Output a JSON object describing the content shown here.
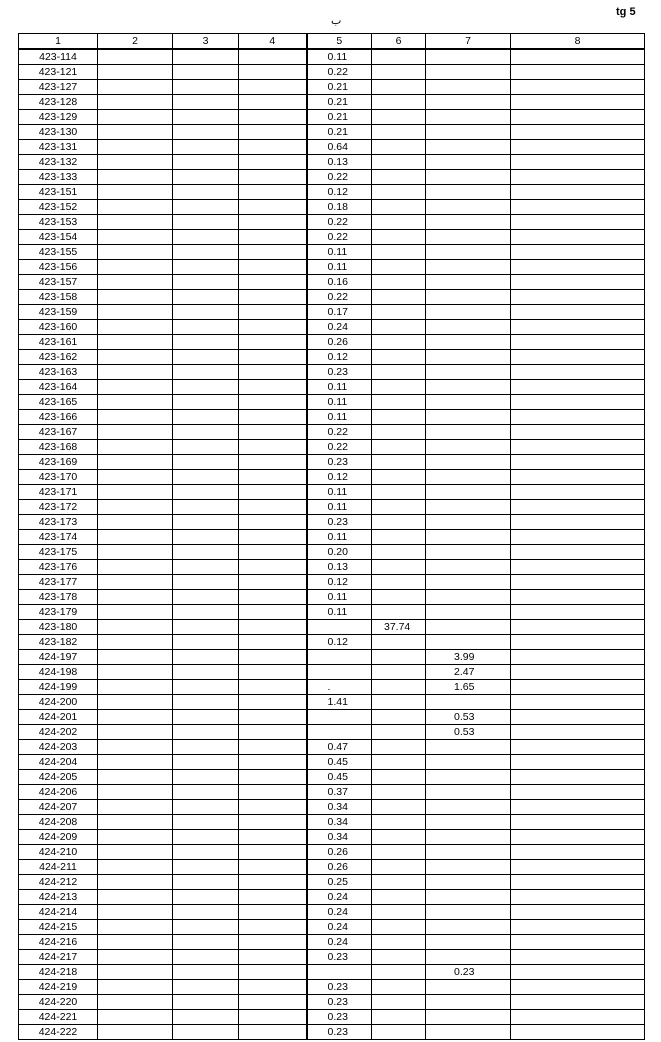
{
  "page_number": "tg 5",
  "top_mark": "ب",
  "headers": [
    "1",
    "2",
    "3",
    "4",
    "5",
    "6",
    "7",
    "8"
  ],
  "rows": [
    {
      "id": "423-114",
      "c5": "0.11"
    },
    {
      "id": "423-121",
      "c5": "0.22"
    },
    {
      "id": "423-127",
      "c5": "0.21"
    },
    {
      "id": "423-128",
      "c5": "0.21"
    },
    {
      "id": "423-129",
      "c5": "0.21"
    },
    {
      "id": "423-130",
      "c5": "0.21"
    },
    {
      "id": "423-131",
      "c5": "0.64"
    },
    {
      "id": "423-132",
      "c5": "0.13"
    },
    {
      "id": "423-133",
      "c5": "0.22"
    },
    {
      "id": "423-151",
      "c5": "0.12"
    },
    {
      "id": "423-152",
      "c5": "0.18"
    },
    {
      "id": "423-153",
      "c5": "0.22"
    },
    {
      "id": "423-154",
      "c5": "0.22"
    },
    {
      "id": "423-155",
      "c5": "0.11"
    },
    {
      "id": "423-156",
      "c5": "0.11"
    },
    {
      "id": "423-157",
      "c5": "0.16"
    },
    {
      "id": "423-158",
      "c5": "0.22"
    },
    {
      "id": "423-159",
      "c5": "0.17"
    },
    {
      "id": "423-160",
      "c5": "0.24"
    },
    {
      "id": "423-161",
      "c5": "0.26"
    },
    {
      "id": "423-162",
      "c5": "0.12"
    },
    {
      "id": "423-163",
      "c5": "0.23"
    },
    {
      "id": "423-164",
      "c5": "0.11"
    },
    {
      "id": "423-165",
      "c5": "0.11"
    },
    {
      "id": "423-166",
      "c5": "0.11"
    },
    {
      "id": "423-167",
      "c5": "0.22"
    },
    {
      "id": "423-168",
      "c5": "0.22"
    },
    {
      "id": "423-169",
      "c5": "0.23"
    },
    {
      "id": "423-170",
      "c5": "0.12"
    },
    {
      "id": "423-171",
      "c5": "0.11"
    },
    {
      "id": "423-172",
      "c5": "0.11"
    },
    {
      "id": "423-173",
      "c5": "0.23"
    },
    {
      "id": "423-174",
      "c5": "0.11"
    },
    {
      "id": "423-175",
      "c5": "0.20"
    },
    {
      "id": "423-176",
      "c5": "0.13"
    },
    {
      "id": "423-177",
      "c5": "0.12"
    },
    {
      "id": "423-178",
      "c5": "0.11"
    },
    {
      "id": "423-179",
      "c5": "0.11"
    },
    {
      "id": "423-180",
      "c6": "37.74"
    },
    {
      "id": "423-182",
      "c5": "0.12"
    },
    {
      "id": "424-197",
      "c7": "3.99"
    },
    {
      "id": "424-198",
      "c7": "2.47"
    },
    {
      "id": "424-199",
      "c5": ".",
      "c7": "1.65"
    },
    {
      "id": "424-200",
      "c5": "1.41"
    },
    {
      "id": "424-201",
      "c7": "0.53"
    },
    {
      "id": "424-202",
      "c7": "0.53"
    },
    {
      "id": "424-203",
      "c5": "0.47"
    },
    {
      "id": "424-204",
      "c5": "0.45"
    },
    {
      "id": "424-205",
      "c5": "0.45"
    },
    {
      "id": "424-206",
      "c5": "0.37"
    },
    {
      "id": "424-207",
      "c5": "0.34"
    },
    {
      "id": "424-208",
      "c5": "0.34"
    },
    {
      "id": "424-209",
      "c5": "0.34"
    },
    {
      "id": "424-210",
      "c5": "0.26"
    },
    {
      "id": "424-211",
      "c5": "0.26"
    },
    {
      "id": "424-212",
      "c5": "0.25"
    },
    {
      "id": "424-213",
      "c5": "0.24"
    },
    {
      "id": "424-214",
      "c5": "0.24"
    },
    {
      "id": "424-215",
      "c5": "0.24"
    },
    {
      "id": "424-216",
      "c5": "0.24"
    },
    {
      "id": "424-217",
      "c5": "0.23"
    },
    {
      "id": "424-218",
      "c7": "0.23"
    },
    {
      "id": "424-219",
      "c5": "0.23"
    },
    {
      "id": "424-220",
      "c5": "0.23"
    },
    {
      "id": "424-221",
      "c5": "0.23"
    },
    {
      "id": "424-222",
      "c5": "0.23"
    }
  ]
}
